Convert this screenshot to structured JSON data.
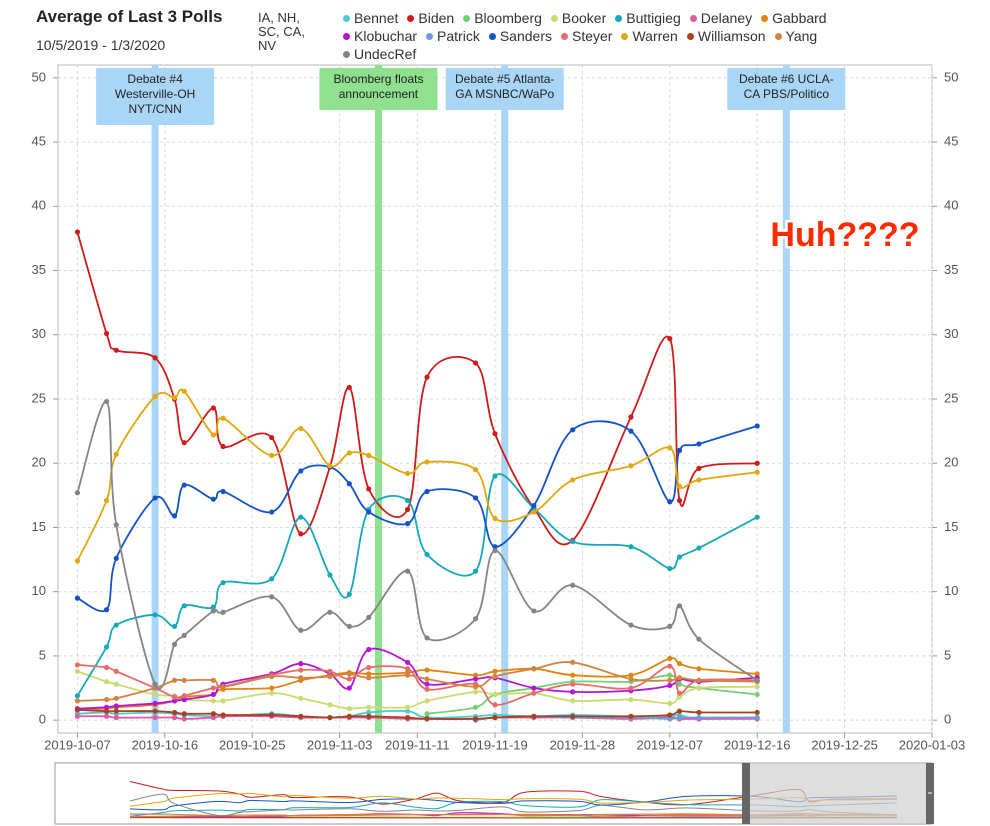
{
  "chart_data": {
    "type": "line",
    "title": "Average of Last 3 Polls",
    "subtitle": "10/5/2019 - 1/3/2020",
    "states": "IA, NH, SC, CA, NV",
    "annotation": "Huh????",
    "x": [
      "2019-10-07",
      "2019-10-10",
      "2019-10-11",
      "2019-10-15",
      "2019-10-17",
      "2019-10-18",
      "2019-10-21",
      "2019-10-22",
      "2019-10-27",
      "2019-10-30",
      "2019-11-02",
      "2019-11-04",
      "2019-11-06",
      "2019-11-10",
      "2019-11-12",
      "2019-11-17",
      "2019-11-19",
      "2019-11-23",
      "2019-11-27",
      "2019-12-03",
      "2019-12-07",
      "2019-12-08",
      "2019-12-10",
      "2019-12-16"
    ],
    "xlim": [
      "2019-10-05",
      "2020-01-03"
    ],
    "xticks": [
      "2019-10-07",
      "2019-10-16",
      "2019-10-25",
      "2019-11-03",
      "2019-11-11",
      "2019-11-19",
      "2019-11-28",
      "2019-12-07",
      "2019-12-16",
      "2019-12-25",
      "2020-01-03"
    ],
    "ylim": [
      -1,
      51
    ],
    "yticks": [
      0,
      5,
      10,
      15,
      20,
      25,
      30,
      35,
      40,
      45,
      50
    ],
    "grid": true,
    "events": [
      {
        "date": "2019-10-15",
        "color": "#a9d5f7",
        "label": [
          "Debate #4",
          "Westerville-OH",
          "NYT/CNN"
        ]
      },
      {
        "date": "2019-11-07",
        "color": "#8fe08f",
        "label": [
          "Bloomberg floats",
          "announcement"
        ]
      },
      {
        "date": "2019-11-20",
        "color": "#a9d5f7",
        "label": [
          "Debate #5 Atlanta-",
          "GA MSNBC/WaPo"
        ]
      },
      {
        "date": "2019-12-19",
        "color": "#a9d5f7",
        "label": [
          "Debate #6 UCLA-",
          "CA PBS/Politico"
        ]
      }
    ],
    "series": [
      {
        "name": "Bennet",
        "color": "#4fc9d6",
        "values": [
          0.5,
          0.6,
          0.5,
          0.6,
          0.5,
          0.4,
          0.3,
          0.3,
          0.5,
          0.3,
          0.2,
          0.3,
          0.6,
          0.7,
          0.2,
          0.3,
          0.4,
          0.3,
          0.4,
          0.3,
          0.3,
          0.4,
          0.1,
          0.2
        ]
      },
      {
        "name": "Biden",
        "color": "#cf1b1b",
        "values": [
          38,
          30.1,
          28.8,
          28.2,
          25,
          21.6,
          24.3,
          21.3,
          22,
          14.5,
          19.7,
          25.9,
          18,
          16.4,
          26.7,
          27.8,
          22.3,
          16.5,
          14,
          23.6,
          29.7,
          17.1,
          19.6,
          20
        ]
      },
      {
        "name": "Bloomberg",
        "color": "#72d172",
        "values": [
          null,
          null,
          null,
          null,
          null,
          null,
          null,
          null,
          null,
          null,
          null,
          null,
          null,
          null,
          0.5,
          1,
          2,
          2.5,
          3,
          3,
          3.5,
          2.8,
          2.5,
          2
        ]
      },
      {
        "name": "Booker",
        "color": "#c9dc72",
        "values": [
          3.8,
          3,
          2.8,
          2,
          1.9,
          1.6,
          1.5,
          1.5,
          2.1,
          1.7,
          1.2,
          0.9,
          1,
          1,
          1.5,
          2.2,
          2,
          2.1,
          1.5,
          1.6,
          1.3,
          1.8,
          2.5,
          2.6
        ]
      },
      {
        "name": "Buttigieg",
        "color": "#17a9ba",
        "values": [
          1.9,
          5.7,
          7.4,
          8.2,
          7.3,
          8.9,
          8.8,
          10.7,
          11,
          15.8,
          11.3,
          9.8,
          16.4,
          17.1,
          12.9,
          11.6,
          19,
          16.5,
          13.9,
          13.5,
          11.8,
          12.7,
          13.4,
          15.8
        ]
      },
      {
        "name": "Delaney",
        "color": "#e05ba3",
        "values": [
          0.3,
          0.3,
          0.2,
          0.2,
          0.2,
          0.1,
          0.2,
          0.3,
          0.3,
          0.2,
          0.2,
          0.2,
          0.2,
          0.1,
          0.1,
          0.1,
          0.2,
          0.2,
          0.2,
          0.1,
          0.2,
          0.1,
          0.1,
          0.1
        ]
      },
      {
        "name": "Gabbard",
        "color": "#e2820f",
        "values": [
          0.8,
          0.9,
          1,
          1.2,
          1.5,
          1.8,
          2,
          2.4,
          2.5,
          3.1,
          3.5,
          3.7,
          3.6,
          3.7,
          3.9,
          3.5,
          3.8,
          4,
          3.5,
          3.5,
          4.8,
          4.4,
          4,
          3.6
        ]
      },
      {
        "name": "Klobuchar",
        "color": "#b514da",
        "values": [
          0.9,
          1,
          1.1,
          1.3,
          1.5,
          1.6,
          2,
          2.8,
          3.6,
          4.4,
          3.6,
          2.5,
          5.5,
          4.5,
          2.8,
          3.2,
          3.3,
          2.5,
          2.2,
          2.3,
          2.7,
          3.2,
          3,
          3.3
        ]
      },
      {
        "name": "Patrick",
        "color": "#6b9ade",
        "values": [
          null,
          null,
          null,
          null,
          null,
          null,
          null,
          null,
          null,
          null,
          null,
          null,
          null,
          null,
          null,
          0,
          0.2,
          0.3,
          0.2,
          0.2,
          0.1,
          0.2,
          0.2,
          0.2
        ]
      },
      {
        "name": "Sanders",
        "color": "#1452c9",
        "values": [
          9.5,
          8.6,
          12.6,
          17.3,
          15.9,
          18.3,
          17.2,
          17.8,
          16.2,
          19.4,
          19.7,
          18.4,
          16.2,
          15.3,
          17.8,
          17.3,
          13.5,
          16.7,
          22.6,
          22.5,
          17,
          21,
          21.5,
          22.9
        ]
      },
      {
        "name": "Steyer",
        "color": "#e96b6b",
        "values": [
          4.3,
          4.1,
          3.8,
          2.5,
          1.8,
          1.9,
          2.5,
          2.6,
          3.5,
          3.9,
          3.8,
          3.2,
          4.1,
          4,
          2.4,
          2.8,
          1.2,
          2.1,
          2.8,
          2.5,
          4.2,
          2.1,
          3.1,
          3.1
        ]
      },
      {
        "name": "Warren",
        "color": "#e1a80b",
        "values": [
          12.4,
          17.1,
          20.7,
          25.2,
          25.1,
          25.6,
          22.2,
          23.5,
          20.6,
          22.7,
          19.8,
          20.8,
          20.6,
          19.2,
          20.1,
          19.5,
          15.7,
          16.2,
          18.7,
          19.8,
          21.2,
          18.2,
          18.7,
          19.3
        ]
      },
      {
        "name": "Williamson",
        "color": "#a8421e",
        "values": [
          0.8,
          0.7,
          0.7,
          0.7,
          0.6,
          0.5,
          0.5,
          0.4,
          0.4,
          0.3,
          0.2,
          0.3,
          0.3,
          0.2,
          0.1,
          0.1,
          0.2,
          0.3,
          0.3,
          0.3,
          0.4,
          0.7,
          0.6,
          0.6
        ]
      },
      {
        "name": "Yang",
        "color": "#d2833f",
        "values": [
          1.5,
          1.6,
          1.7,
          2.5,
          3.1,
          3.1,
          3.1,
          2.6,
          3.4,
          3.3,
          3.4,
          3.6,
          3.3,
          3.5,
          3.2,
          2.6,
          3.4,
          4,
          4.5,
          3.2,
          3.1,
          3.3,
          3.1,
          3
        ]
      },
      {
        "name": "UndecRef",
        "color": "#858585",
        "values": [
          17.7,
          24.8,
          15.2,
          2.8,
          5.9,
          6.6,
          8.5,
          8.4,
          9.6,
          7,
          8.4,
          7.3,
          8,
          11.6,
          6.4,
          7.9,
          13.2,
          8.5,
          10.5,
          7.4,
          7.3,
          8.9,
          6.3,
          3.1
        ]
      }
    ]
  }
}
